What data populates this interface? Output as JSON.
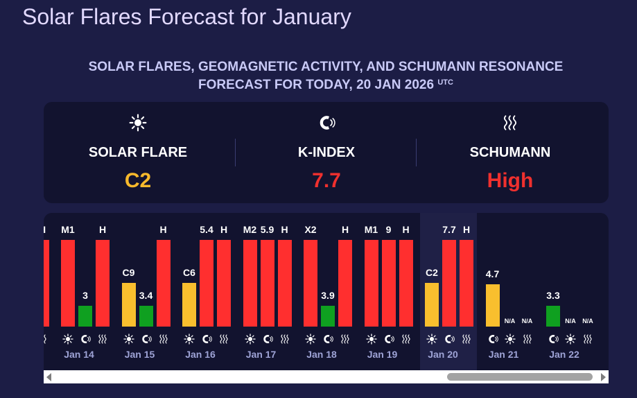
{
  "page_title": "Solar Flares Forecast for January",
  "subtitle_line1": "SOLAR FLARES, GEOMAGNETIC ACTIVITY, AND SCHUMANN RESONANCE",
  "subtitle_line2": "FORECAST FOR TODAY, 20 JAN 2026",
  "subtitle_tz": "UTC",
  "colors": {
    "background": "#1c1d45",
    "panel": "#12132f",
    "flare_value": "#f7b92c",
    "kindex_value": "#f0302e",
    "schumann_value": "#f0302e",
    "bar_red": "#ff2f2f",
    "bar_yellow": "#f9bf2e",
    "bar_green": "#0fa020"
  },
  "summary": [
    {
      "icon": "sun-icon",
      "label": "SOLAR FLARE",
      "value": "C2",
      "color": "#f7b92c"
    },
    {
      "icon": "magnet-icon",
      "label": "K-INDEX",
      "value": "7.7",
      "color": "#f0302e"
    },
    {
      "icon": "waves-icon",
      "label": "SCHUMANN",
      "value": "High",
      "color": "#f0302e"
    }
  ],
  "days": [
    {
      "date": "",
      "today": false,
      "partial": true,
      "icons": [
        "waves-icon"
      ],
      "bars": [
        {
          "label": "H",
          "level": 1.0,
          "color": "#ff2f2f"
        }
      ]
    },
    {
      "date": "Jan 14",
      "today": false,
      "icons": [
        "sun-icon",
        "magnet-icon",
        "waves-icon"
      ],
      "bars": [
        {
          "label": "M1",
          "level": 1.0,
          "color": "#ff2f2f"
        },
        {
          "label": "3",
          "level": 0.24,
          "color": "#0fa020"
        },
        {
          "label": "H",
          "level": 1.0,
          "color": "#ff2f2f"
        }
      ]
    },
    {
      "date": "Jan 15",
      "today": false,
      "icons": [
        "sun-icon",
        "magnet-icon",
        "waves-icon"
      ],
      "bars": [
        {
          "label": "C9",
          "level": 0.5,
          "color": "#f9bf2e"
        },
        {
          "label": "3.4",
          "level": 0.24,
          "color": "#0fa020"
        },
        {
          "label": "H",
          "level": 1.0,
          "color": "#ff2f2f"
        }
      ]
    },
    {
      "date": "Jan 16",
      "today": false,
      "icons": [
        "sun-icon",
        "magnet-icon",
        "waves-icon"
      ],
      "bars": [
        {
          "label": "C6",
          "level": 0.5,
          "color": "#f9bf2e"
        },
        {
          "label": "5.4",
          "level": 1.0,
          "color": "#ff2f2f"
        },
        {
          "label": "H",
          "level": 1.0,
          "color": "#ff2f2f"
        }
      ]
    },
    {
      "date": "Jan 17",
      "today": false,
      "icons": [
        "sun-icon",
        "magnet-icon",
        "waves-icon"
      ],
      "bars": [
        {
          "label": "M2",
          "level": 1.0,
          "color": "#ff2f2f"
        },
        {
          "label": "5.9",
          "level": 1.0,
          "color": "#ff2f2f"
        },
        {
          "label": "H",
          "level": 1.0,
          "color": "#ff2f2f"
        }
      ]
    },
    {
      "date": "Jan 18",
      "today": false,
      "icons": [
        "sun-icon",
        "magnet-icon",
        "waves-icon"
      ],
      "bars": [
        {
          "label": "X2",
          "level": 1.0,
          "color": "#ff2f2f"
        },
        {
          "label": "3.9",
          "level": 0.24,
          "color": "#0fa020"
        },
        {
          "label": "H",
          "level": 1.0,
          "color": "#ff2f2f"
        }
      ]
    },
    {
      "date": "Jan 19",
      "today": false,
      "icons": [
        "sun-icon",
        "magnet-icon",
        "waves-icon"
      ],
      "bars": [
        {
          "label": "M1",
          "level": 1.0,
          "color": "#ff2f2f"
        },
        {
          "label": "9",
          "level": 1.0,
          "color": "#ff2f2f"
        },
        {
          "label": "H",
          "level": 1.0,
          "color": "#ff2f2f"
        }
      ]
    },
    {
      "date": "Jan 20",
      "today": true,
      "icons": [
        "sun-icon",
        "magnet-icon",
        "waves-icon"
      ],
      "bars": [
        {
          "label": "C2",
          "level": 0.5,
          "color": "#f9bf2e"
        },
        {
          "label": "7.7",
          "level": 1.0,
          "color": "#ff2f2f"
        },
        {
          "label": "H",
          "level": 1.0,
          "color": "#ff2f2f"
        }
      ]
    },
    {
      "date": "Jan 21",
      "today": false,
      "icons": [
        "magnet-icon",
        "sun-icon",
        "waves-icon"
      ],
      "bars": [
        {
          "label": "4.7",
          "level": 0.49,
          "color": "#f9bf2e"
        },
        {
          "label": "N/A",
          "level": 0,
          "color": ""
        },
        {
          "label": "N/A",
          "level": 0,
          "color": ""
        }
      ]
    },
    {
      "date": "Jan 22",
      "today": false,
      "icons": [
        "magnet-icon",
        "sun-icon",
        "waves-icon"
      ],
      "bars": [
        {
          "label": "3.3",
          "level": 0.24,
          "color": "#0fa020"
        },
        {
          "label": "N/A",
          "level": 0,
          "color": ""
        },
        {
          "label": "N/A",
          "level": 0,
          "color": ""
        }
      ]
    }
  ]
}
